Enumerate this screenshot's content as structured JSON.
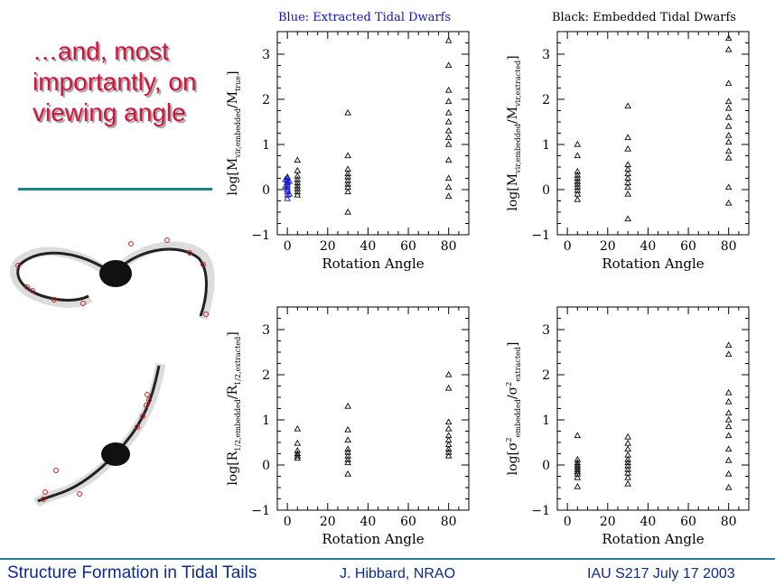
{
  "slide": {
    "headline": "…and, most importantly, on viewing angle",
    "legend_blue": "Blue: Extracted Tidal Dwarfs",
    "legend_black": "Black: Embedded Tidal Dwarfs",
    "footer_left": "Structure Formation in Tidal Tails",
    "footer_mid": "J. Hibbard, NRAO",
    "footer_right": "IAU S217  July 17 2003"
  },
  "colors": {
    "headline": "#d1143d",
    "extracted_points": "#1010cc",
    "embedded_points": "#000000",
    "footer_text": "#0e2a88",
    "rule": "#1a8a80"
  },
  "chart_data": [
    {
      "type": "scatter",
      "ylabel_main": "log[M",
      "ylabel_sub1": "vir,embedded",
      "ylabel_mid": "/M",
      "ylabel_sub2": "true",
      "ylabel_close": "]",
      "xlabel": "Rotation Angle",
      "xlim": [
        -5,
        90
      ],
      "ylim": [
        -1,
        3.5
      ],
      "xticks": [
        "0",
        "20",
        "40",
        "60",
        "80"
      ],
      "yticks": [
        "−1",
        "0",
        "1",
        "2",
        "3"
      ],
      "series": [
        {
          "name": "Extracted",
          "color": "#1010cc",
          "points": [
            [
              0,
              -0.2
            ],
            [
              0,
              -0.12
            ],
            [
              0,
              -0.05
            ],
            [
              0,
              0.0
            ],
            [
              0,
              0.05
            ],
            [
              0,
              0.1
            ],
            [
              0,
              0.15
            ],
            [
              0,
              0.2
            ],
            [
              0,
              0.25
            ],
            [
              0,
              0.28
            ],
            [
              1,
              -0.1
            ],
            [
              -1,
              0.08
            ],
            [
              1,
              0.18
            ],
            [
              -1,
              0.22
            ]
          ]
        },
        {
          "name": "Embedded",
          "color": "#000000",
          "points": [
            [
              5,
              0.65
            ],
            [
              5,
              0.42
            ],
            [
              5,
              0.3
            ],
            [
              5,
              0.22
            ],
            [
              5,
              0.15
            ],
            [
              5,
              0.08
            ],
            [
              5,
              0.02
            ],
            [
              5,
              -0.05
            ],
            [
              5,
              -0.12
            ],
            [
              30,
              1.7
            ],
            [
              30,
              0.75
            ],
            [
              30,
              0.45
            ],
            [
              30,
              0.35
            ],
            [
              30,
              0.28
            ],
            [
              30,
              0.2
            ],
            [
              30,
              0.12
            ],
            [
              30,
              0.05
            ],
            [
              30,
              -0.05
            ],
            [
              30,
              -0.5
            ],
            [
              80,
              3.3
            ],
            [
              80,
              2.75
            ],
            [
              80,
              2.2
            ],
            [
              80,
              1.95
            ],
            [
              80,
              1.7
            ],
            [
              80,
              1.5
            ],
            [
              80,
              1.3
            ],
            [
              80,
              1.15
            ],
            [
              80,
              1.0
            ],
            [
              80,
              0.65
            ],
            [
              80,
              0.25
            ],
            [
              80,
              0.05
            ],
            [
              80,
              -0.15
            ]
          ]
        }
      ]
    },
    {
      "type": "scatter",
      "ylabel_main": "log[M",
      "ylabel_sub1": "vir,embedded",
      "ylabel_mid": "/M",
      "ylabel_sub2": "vir,extracted",
      "ylabel_close": "]",
      "xlabel": "Rotation Angle",
      "xlim": [
        -5,
        90
      ],
      "ylim": [
        -1,
        3.5
      ],
      "xticks": [
        "0",
        "20",
        "40",
        "60",
        "80"
      ],
      "yticks": [
        "−1",
        "0",
        "1",
        "2",
        "3"
      ],
      "series": [
        {
          "name": "Embedded",
          "color": "#000000",
          "points": [
            [
              5,
              1.0
            ],
            [
              5,
              0.75
            ],
            [
              5,
              0.4
            ],
            [
              5,
              0.32
            ],
            [
              5,
              0.25
            ],
            [
              5,
              0.18
            ],
            [
              5,
              0.12
            ],
            [
              5,
              0.05
            ],
            [
              5,
              -0.02
            ],
            [
              5,
              -0.1
            ],
            [
              5,
              -0.22
            ],
            [
              30,
              1.85
            ],
            [
              30,
              1.15
            ],
            [
              30,
              0.9
            ],
            [
              30,
              0.55
            ],
            [
              30,
              0.45
            ],
            [
              30,
              0.35
            ],
            [
              30,
              0.25
            ],
            [
              30,
              0.15
            ],
            [
              30,
              0.05
            ],
            [
              30,
              -0.1
            ],
            [
              30,
              -0.65
            ],
            [
              80,
              3.35
            ],
            [
              80,
              3.1
            ],
            [
              80,
              2.35
            ],
            [
              80,
              1.95
            ],
            [
              80,
              1.8
            ],
            [
              80,
              1.6
            ],
            [
              80,
              1.4
            ],
            [
              80,
              1.2
            ],
            [
              80,
              1.05
            ],
            [
              80,
              0.85
            ],
            [
              80,
              0.7
            ],
            [
              80,
              0.05
            ],
            [
              80,
              -0.3
            ]
          ]
        }
      ]
    },
    {
      "type": "scatter",
      "ylabel_main": "log[R",
      "ylabel_sub1": "1/2,embedded",
      "ylabel_mid": "/R",
      "ylabel_sub2": "1/2,extracted",
      "ylabel_close": "]",
      "xlabel": "Rotation Angle",
      "xlim": [
        -5,
        90
      ],
      "ylim": [
        -1,
        3.5
      ],
      "xticks": [
        "0",
        "20",
        "40",
        "60",
        "80"
      ],
      "yticks": [
        "−1",
        "0",
        "1",
        "2",
        "3"
      ],
      "series": [
        {
          "name": "Embedded",
          "color": "#000000",
          "points": [
            [
              5,
              0.8
            ],
            [
              5,
              0.48
            ],
            [
              5,
              0.32
            ],
            [
              5,
              0.25
            ],
            [
              5,
              0.2
            ],
            [
              5,
              0.15
            ],
            [
              30,
              1.3
            ],
            [
              30,
              0.78
            ],
            [
              30,
              0.55
            ],
            [
              30,
              0.35
            ],
            [
              30,
              0.28
            ],
            [
              30,
              0.2
            ],
            [
              30,
              0.12
            ],
            [
              30,
              0.05
            ],
            [
              30,
              -0.2
            ],
            [
              80,
              2.0
            ],
            [
              80,
              1.7
            ],
            [
              80,
              0.95
            ],
            [
              80,
              0.8
            ],
            [
              80,
              0.65
            ],
            [
              80,
              0.55
            ],
            [
              80,
              0.45
            ],
            [
              80,
              0.35
            ],
            [
              80,
              0.28
            ],
            [
              80,
              0.2
            ]
          ]
        }
      ]
    },
    {
      "type": "scatter",
      "ylabel_main": "log[σ",
      "ylabel_sup1": "2",
      "ylabel_sub1": "embedded",
      "ylabel_mid": "/σ",
      "ylabel_sup2": "2",
      "ylabel_sub2": "extracted",
      "ylabel_close": "]",
      "xlabel": "Rotation Angle",
      "xlim": [
        -5,
        90
      ],
      "ylim": [
        -1,
        3.5
      ],
      "xticks": [
        "0",
        "20",
        "40",
        "60",
        "80"
      ],
      "yticks": [
        "−1",
        "0",
        "1",
        "2",
        "3"
      ],
      "series": [
        {
          "name": "Embedded",
          "color": "#000000",
          "points": [
            [
              5,
              0.65
            ],
            [
              5,
              0.12
            ],
            [
              5,
              0.05
            ],
            [
              5,
              0.0
            ],
            [
              5,
              -0.05
            ],
            [
              5,
              -0.1
            ],
            [
              5,
              -0.15
            ],
            [
              5,
              -0.2
            ],
            [
              5,
              -0.28
            ],
            [
              5,
              -0.48
            ],
            [
              30,
              0.62
            ],
            [
              30,
              0.48
            ],
            [
              30,
              0.35
            ],
            [
              30,
              0.22
            ],
            [
              30,
              0.12
            ],
            [
              30,
              0.05
            ],
            [
              30,
              -0.02
            ],
            [
              30,
              -0.1
            ],
            [
              30,
              -0.18
            ],
            [
              30,
              -0.28
            ],
            [
              30,
              -0.42
            ],
            [
              80,
              2.65
            ],
            [
              80,
              2.45
            ],
            [
              80,
              1.6
            ],
            [
              80,
              1.4
            ],
            [
              80,
              1.15
            ],
            [
              80,
              1.0
            ],
            [
              80,
              0.85
            ],
            [
              80,
              0.65
            ],
            [
              80,
              0.35
            ],
            [
              80,
              0.1
            ],
            [
              80,
              -0.2
            ],
            [
              80,
              -0.5
            ]
          ]
        }
      ]
    }
  ]
}
